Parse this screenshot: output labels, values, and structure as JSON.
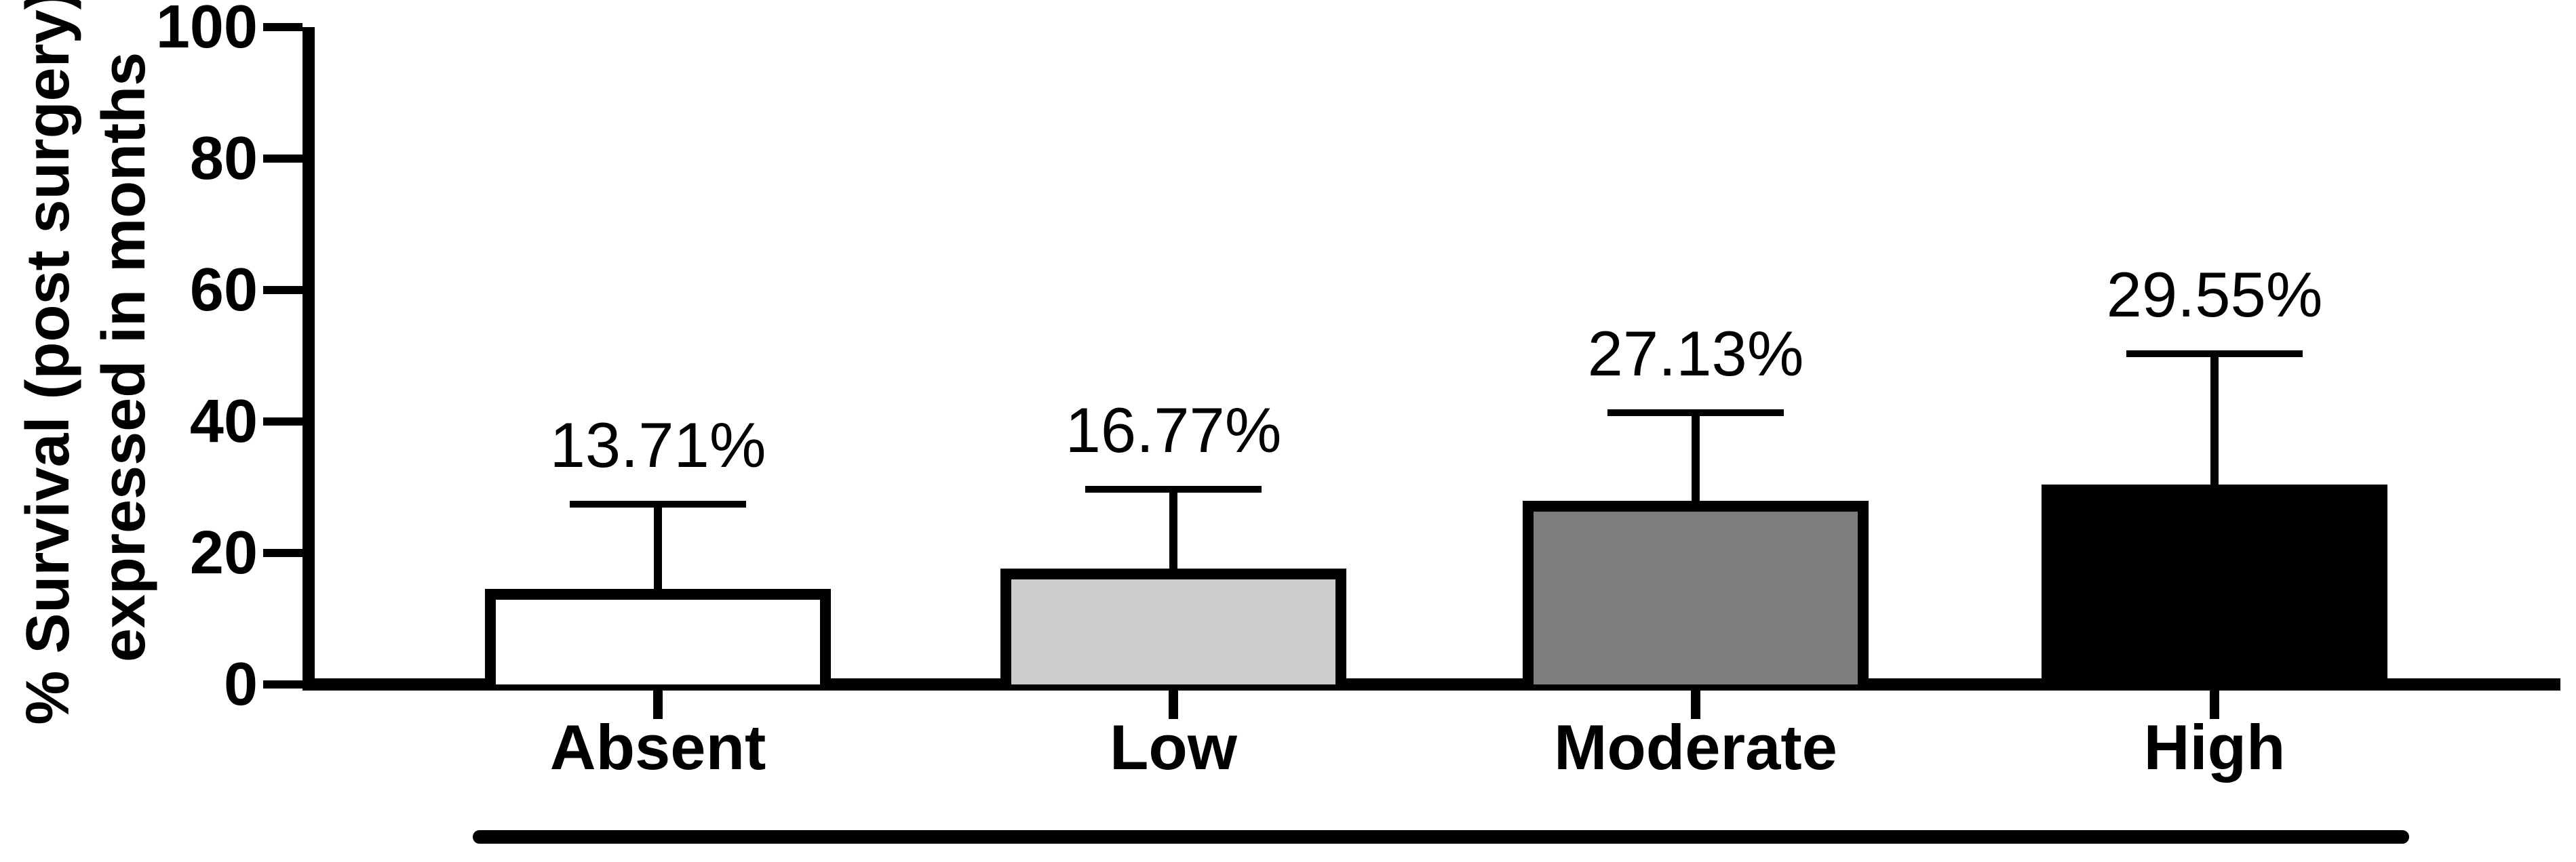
{
  "chart_data": {
    "type": "bar",
    "title": "",
    "xlabel": "",
    "ylabel": "% Survival (post surgery) expressed in months",
    "ylabel_lines": [
      "% Survival (post surgery)",
      "expressed in months"
    ],
    "categories": [
      "Absent",
      "Low",
      "Moderate",
      "High"
    ],
    "values": [
      13.71,
      16.77,
      27.13,
      29.55
    ],
    "value_labels": [
      "13.71%",
      "16.77%",
      "27.13%",
      "29.55%"
    ],
    "error_bar_tops": [
      27.4,
      29.7,
      41.3,
      50.3
    ],
    "yticks": [
      0,
      20,
      40,
      60,
      80,
      100
    ],
    "ytick_labels": [
      "0",
      "20",
      "40",
      "60",
      "80",
      "100"
    ],
    "ylim": [
      0,
      100
    ],
    "grid": false,
    "legend": false,
    "bar_fill_colors": [
      "#ffffff",
      "#cccccc",
      "#7e7e7e",
      "#000000"
    ],
    "bar_border_color": "#000000",
    "axis_color": "#000000",
    "text_color": "#000000",
    "background_color": "#ffffff",
    "comparison_bracket_below_categories": true
  }
}
